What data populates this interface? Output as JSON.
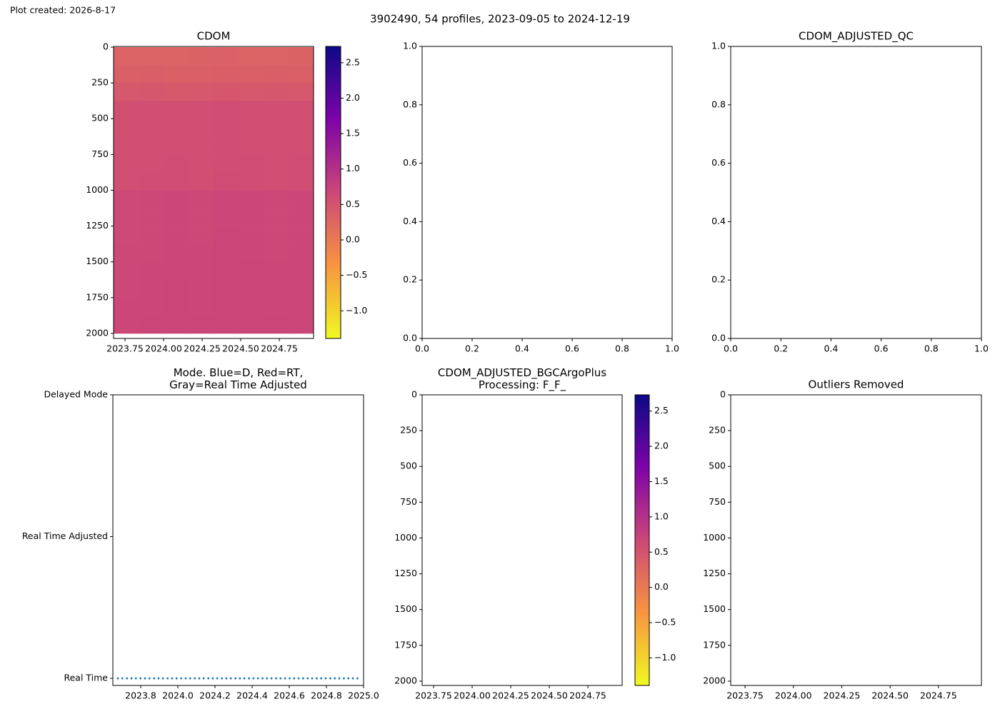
{
  "plot_created": "Plot created: 2026-8-17",
  "title": "3902490, 54 profiles, 2023-09-05 to 2024-12-19",
  "chart_data": [
    {
      "type": "heatmap",
      "title": "CDOM",
      "colormap": "plasma_r",
      "x_edges": [
        2023.676,
        2023.838,
        2024.0,
        2024.162,
        2024.324,
        2024.486,
        2024.648,
        2024.81,
        2024.972
      ],
      "y_edges": [
        0,
        125,
        250,
        375,
        500,
        625,
        750,
        875,
        1000,
        1125,
        1250,
        1375,
        1500,
        1625,
        1750,
        1875,
        2000
      ],
      "z": [
        [
          0.3,
          0.32,
          0.3,
          0.31,
          0.33,
          0.3,
          0.32,
          0.31
        ],
        [
          0.35,
          0.36,
          0.34,
          0.35,
          0.37,
          0.35,
          0.36,
          0.35
        ],
        [
          0.45,
          0.46,
          0.44,
          0.45,
          0.47,
          0.45,
          0.46,
          0.45
        ],
        [
          0.55,
          0.56,
          0.57,
          0.56,
          0.58,
          0.57,
          0.56,
          0.57
        ],
        [
          0.55,
          0.56,
          0.57,
          0.56,
          0.58,
          0.57,
          0.56,
          0.57
        ],
        [
          0.56,
          0.57,
          0.57,
          0.56,
          0.58,
          0.57,
          0.57,
          0.57
        ],
        [
          0.56,
          0.57,
          0.58,
          0.57,
          0.58,
          0.58,
          0.57,
          0.58
        ],
        [
          0.57,
          0.58,
          0.58,
          0.57,
          0.59,
          0.58,
          0.57,
          0.58
        ],
        [
          0.65,
          0.66,
          0.67,
          0.66,
          0.68,
          0.67,
          0.66,
          0.67
        ],
        [
          0.65,
          0.66,
          0.67,
          0.66,
          0.68,
          0.67,
          0.66,
          0.67
        ],
        [
          0.65,
          0.66,
          0.67,
          0.66,
          0.68,
          0.67,
          0.66,
          0.67
        ],
        [
          0.66,
          0.66,
          0.67,
          0.67,
          0.68,
          0.67,
          0.66,
          0.67
        ],
        [
          0.66,
          0.67,
          0.67,
          0.67,
          0.68,
          0.68,
          0.67,
          0.67
        ],
        [
          0.66,
          0.67,
          0.68,
          0.67,
          0.68,
          0.68,
          0.67,
          0.68
        ],
        [
          0.67,
          0.67,
          0.68,
          0.67,
          0.69,
          0.68,
          0.67,
          0.68
        ],
        [
          0.67,
          0.68,
          0.68,
          0.68,
          0.69,
          0.68,
          0.68,
          0.68
        ]
      ],
      "xlim": [
        2023.676,
        2024.972
      ],
      "xticks": [
        2023.75,
        {
          "value": 2024.0,
          "label": "2024.00"
        },
        2024.25,
        {
          "value": 2024.5,
          "label": "2024.50"
        },
        2024.75
      ],
      "ylim": [
        2035,
        -5
      ],
      "yticks": [
        0,
        250,
        500,
        750,
        1000,
        1250,
        1500,
        1750,
        2000
      ],
      "clim": [
        -1.39,
        2.73
      ],
      "cticks": [
        {
          "value": -1.0,
          "label": "−1.0"
        },
        {
          "value": -0.5,
          "label": "−0.5"
        },
        {
          "value": 0.0,
          "label": "0.0"
        },
        0.5,
        {
          "value": 1.0,
          "label": "1.0"
        },
        1.5,
        {
          "value": 2.0,
          "label": "2.0"
        },
        2.5
      ]
    },
    {
      "type": "empty",
      "xlim": [
        0,
        1
      ],
      "xticks": [
        {
          "value": 0,
          "label": "0.0"
        },
        0.2,
        0.4,
        0.6,
        0.8,
        {
          "value": 1,
          "label": "1.0"
        }
      ],
      "ylim": [
        0,
        1
      ],
      "yticks": [
        {
          "value": 0,
          "label": "0.0"
        },
        0.2,
        0.4,
        0.6,
        0.8,
        {
          "value": 1,
          "label": "1.0"
        }
      ]
    },
    {
      "type": "empty",
      "title": "CDOM_ADJUSTED_QC",
      "xlim": [
        0,
        1
      ],
      "xticks": [
        {
          "value": 0,
          "label": "0.0"
        },
        0.2,
        0.4,
        0.6,
        0.8,
        {
          "value": 1,
          "label": "1.0"
        }
      ],
      "ylim": [
        0,
        1
      ],
      "yticks": [
        {
          "value": 0,
          "label": "0.0"
        },
        0.2,
        0.4,
        0.6,
        0.8,
        {
          "value": 1,
          "label": "1.0"
        }
      ]
    },
    {
      "type": "scatter",
      "title": "Mode. Blue=D, Red=RT,\nGray=Real Time Adjusted",
      "x": [
        2023.677,
        2023.701,
        2023.726,
        2023.75,
        2023.774,
        2023.799,
        2023.823,
        2023.847,
        2023.872,
        2023.896,
        2023.92,
        2023.945,
        2023.969,
        2023.993,
        2024.018,
        2024.042,
        2024.066,
        2024.091,
        2024.115,
        2024.139,
        2024.164,
        2024.188,
        2024.212,
        2024.237,
        2024.261,
        2024.285,
        2024.31,
        2024.334,
        2024.358,
        2024.383,
        2024.407,
        2024.431,
        2024.456,
        2024.48,
        2024.504,
        2024.529,
        2024.553,
        2024.577,
        2024.602,
        2024.626,
        2024.65,
        2024.675,
        2024.699,
        2024.723,
        2024.748,
        2024.772,
        2024.796,
        2024.821,
        2024.845,
        2024.869,
        2024.894,
        2024.918,
        2024.942,
        2024.967
      ],
      "series": [
        {
          "color": "#1f77b4",
          "values": [
            0,
            0,
            0,
            0,
            0,
            0,
            0,
            0,
            0,
            0,
            0,
            0,
            0,
            0,
            0,
            0,
            0,
            0,
            0,
            0,
            0,
            0,
            0,
            0,
            0,
            0,
            0,
            0,
            0,
            0,
            0,
            0,
            0,
            0,
            0,
            0,
            0,
            0,
            0,
            0,
            0,
            0,
            0,
            0,
            0,
            0,
            0,
            0,
            0,
            0,
            0,
            0,
            0,
            0
          ]
        }
      ],
      "xlim": [
        2023.65,
        2025.0
      ],
      "xticks": [
        2023.8,
        {
          "value": 2024.0,
          "label": "2024.0"
        },
        2024.2,
        2024.4,
        2024.6,
        2024.8,
        {
          "value": 2025.0,
          "label": "2025.0"
        }
      ],
      "ylim": [
        -0.05,
        2
      ],
      "yticks": [
        {
          "value": 0,
          "label": "Real Time"
        },
        {
          "value": 1,
          "label": "Real Time Adjusted"
        },
        {
          "value": 2,
          "label": "Delayed Mode"
        }
      ]
    },
    {
      "type": "heatmap",
      "title": "CDOM_ADJUSTED_BGCArgoPlus\nProcessing: F_F_",
      "colormap": "plasma_r",
      "xlim": [
        2023.676,
        2024.972
      ],
      "xticks": [
        2023.75,
        {
          "value": 2024.0,
          "label": "2024.00"
        },
        2024.25,
        {
          "value": 2024.5,
          "label": "2024.50"
        },
        2024.75
      ],
      "ylim": [
        2030,
        0
      ],
      "yticks": [
        0,
        250,
        500,
        750,
        1000,
        1250,
        1500,
        1750,
        2000
      ],
      "clim": [
        -1.39,
        2.73
      ],
      "cticks": [
        {
          "value": -1.0,
          "label": "−1.0"
        },
        {
          "value": -0.5,
          "label": "−0.5"
        },
        {
          "value": 0.0,
          "label": "0.0"
        },
        0.5,
        {
          "value": 1.0,
          "label": "1.0"
        },
        1.5,
        {
          "value": 2.0,
          "label": "2.0"
        },
        2.5
      ]
    },
    {
      "type": "heatmap",
      "title": "Outliers Removed",
      "xlim": [
        2023.676,
        2024.972
      ],
      "xticks": [
        2023.75,
        {
          "value": 2024.0,
          "label": "2024.00"
        },
        2024.25,
        {
          "value": 2024.5,
          "label": "2024.50"
        },
        2024.75
      ],
      "ylim": [
        2030,
        0
      ],
      "yticks": [
        0,
        250,
        500,
        750,
        1000,
        1250,
        1500,
        1750,
        2000
      ]
    }
  ]
}
